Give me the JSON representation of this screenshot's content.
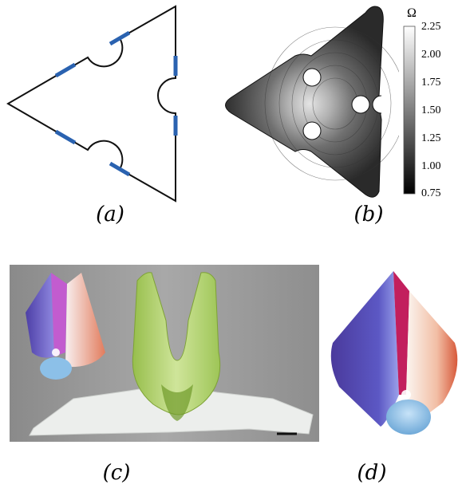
{
  "panels": {
    "a": {
      "label": "(a)"
    },
    "b": {
      "label": "(b)"
    },
    "c": {
      "label": "(c)"
    },
    "d": {
      "label": "(d)"
    }
  },
  "colorbar": {
    "symbol": "Ω",
    "ticks": [
      "2.25",
      "2.00",
      "1.75",
      "1.50",
      "1.25",
      "1.00",
      "0.75"
    ],
    "range": [
      0.75,
      2.25
    ]
  },
  "colors": {
    "outline": "#111111",
    "strip": "#2a62b0",
    "photo_bg": "#9b9b9b",
    "green_shell": "#b2d463",
    "paper_white": "#eceeec"
  }
}
